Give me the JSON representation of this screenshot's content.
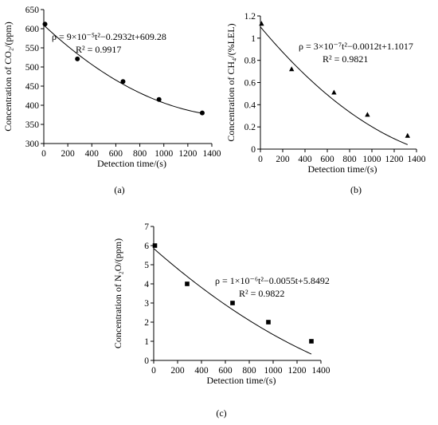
{
  "chart_data": [
    {
      "type": "scatter",
      "panel_label": "(a)",
      "xlabel": "Detection time/(s)",
      "ylabel": "Concentration of CO₂/(ppm)",
      "xlim": [
        0,
        1400
      ],
      "ylim": [
        300,
        650
      ],
      "xticks": [
        0,
        200,
        400,
        600,
        800,
        1000,
        1200,
        1400
      ],
      "yticks": [
        300,
        350,
        400,
        450,
        500,
        550,
        600,
        650
      ],
      "points": [
        [
          10,
          612
        ],
        [
          280,
          521
        ],
        [
          660,
          462
        ],
        [
          960,
          415
        ],
        [
          1320,
          380
        ]
      ],
      "marker": "circle",
      "fit": {
        "a": 9e-05,
        "b": -0.2932,
        "c": 609.28
      },
      "equation": "ρ = 9×10⁻⁵t²−0.2932t+609.28",
      "r2": "R² = 0.9917"
    },
    {
      "type": "scatter",
      "panel_label": "(b)",
      "xlabel": "Detection time/(s)",
      "ylabel": "Concentration of CH₄/(%LEL)",
      "xlim": [
        0,
        1400
      ],
      "ylim": [
        0,
        1.2
      ],
      "xticks": [
        0,
        200,
        400,
        600,
        800,
        1000,
        1200,
        1400
      ],
      "yticks": [
        0,
        0.2,
        0.4,
        0.6,
        0.8,
        1,
        1.2
      ],
      "points": [
        [
          10,
          1.13
        ],
        [
          280,
          0.72
        ],
        [
          660,
          0.51
        ],
        [
          960,
          0.31
        ],
        [
          1320,
          0.12
        ]
      ],
      "marker": "triangle",
      "fit": {
        "a": 3e-07,
        "b": -0.0012,
        "c": 1.1017
      },
      "equation": "ρ = 3×10⁻⁷t²−0.0012t+1.1017",
      "r2": "R² = 0.9821"
    },
    {
      "type": "scatter",
      "panel_label": "(c)",
      "xlabel": "Detection time/(s)",
      "ylabel": "Concentration of N₂O/(ppm)",
      "xlim": [
        0,
        1400
      ],
      "ylim": [
        0,
        7
      ],
      "xticks": [
        0,
        200,
        400,
        600,
        800,
        1000,
        1200,
        1400
      ],
      "yticks": [
        0,
        1,
        2,
        3,
        4,
        5,
        6,
        7
      ],
      "points": [
        [
          10,
          6
        ],
        [
          280,
          4
        ],
        [
          660,
          3
        ],
        [
          960,
          2
        ],
        [
          1320,
          1
        ]
      ],
      "marker": "square",
      "fit": {
        "a": 1e-06,
        "b": -0.0055,
        "c": 5.8492
      },
      "equation": "ρ = 1×10⁻⁶t²−0.0055t+5.8492",
      "r2": "R² = 0.9822"
    }
  ]
}
